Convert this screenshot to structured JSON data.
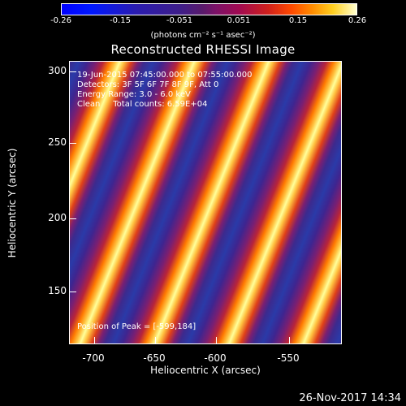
{
  "colorbar": {
    "ticks": [
      "-0.26",
      "-0.15",
      "-0.051",
      "0.051",
      "0.15",
      "0.26"
    ],
    "unit": "(photons cm⁻² s⁻¹ asec⁻²)"
  },
  "title": "Reconstructed RHESSI Image",
  "info": {
    "line1": "19-Jun-2015 07:45:00.000 to 07:55:00.000",
    "line2": "Detectors: 3F 5F 6F 7F 8F 9F, Att 0",
    "line3": "Energy Range: 3.0 - 6.0 keV",
    "line4": "Clean     Total counts: 6.59E+04"
  },
  "peak": "Position of Peak = [-599,184]",
  "axes": {
    "xlabel": "Heliocentric X (arcsec)",
    "ylabel": "Heliocentric Y (arcsec)",
    "xticks": [
      "-700",
      "-650",
      "-600",
      "-550"
    ],
    "yticks": [
      "300",
      "250",
      "200",
      "150"
    ]
  },
  "footer": "26-Nov-2017 14:34"
}
